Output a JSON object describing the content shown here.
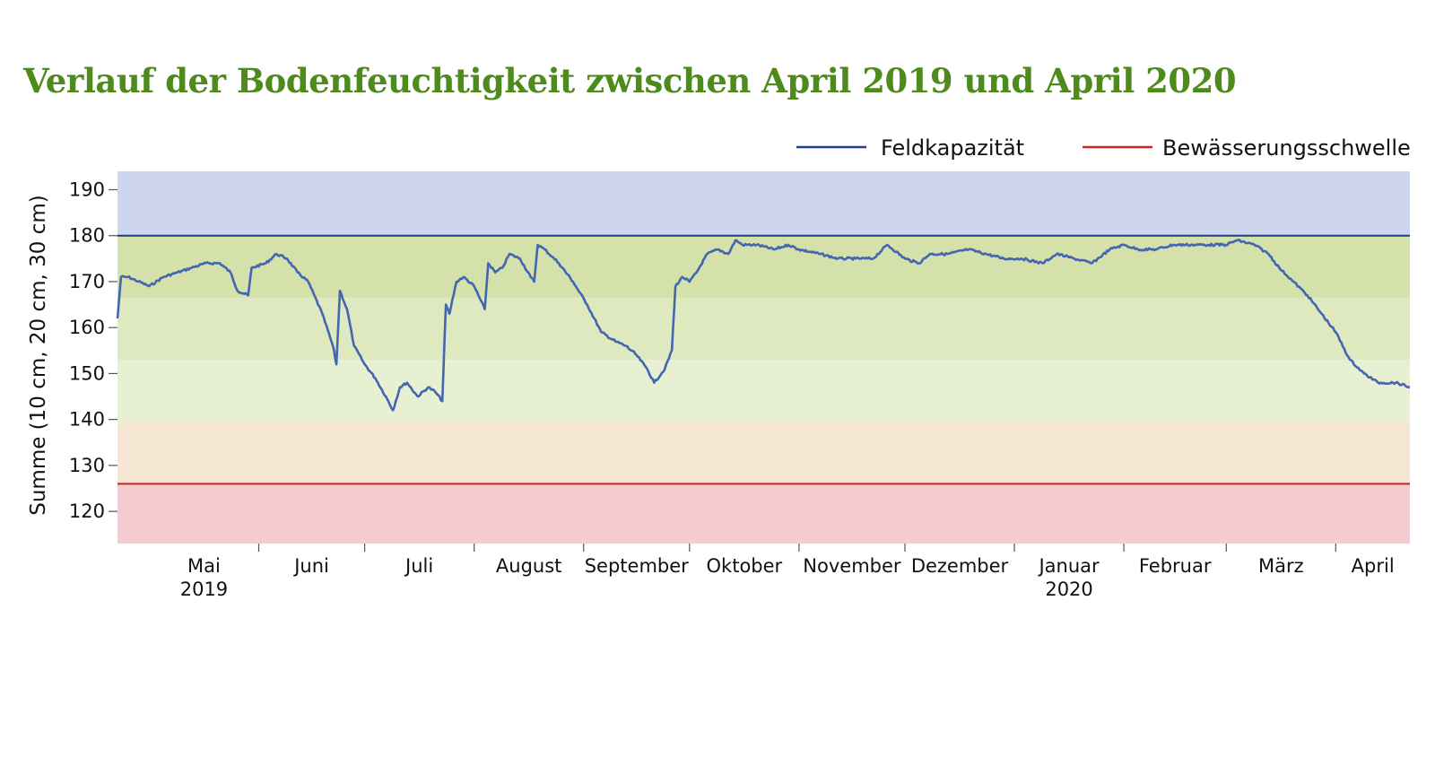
{
  "title": "Verlauf der Bodenfeuchtigkeit zwischen April 2019 und April 2020",
  "chart_data": {
    "type": "line",
    "title": "Verlauf der Bodenfeuchtigkeit zwischen April 2019 und April 2020",
    "xlabel": "",
    "ylabel": "Summe (10 cm, 20 cm, 30 cm)",
    "ylim": [
      113,
      194
    ],
    "yticks": [
      120,
      130,
      140,
      150,
      160,
      170,
      180,
      190
    ],
    "xlim": [
      "2019-04-22",
      "2020-04-22"
    ],
    "legend_position": "top-right",
    "legend": [
      {
        "label": "Feldkapazität",
        "color": "#1f3d8a"
      },
      {
        "label": "Bewässerungsschwelle",
        "color": "#d21f26"
      }
    ],
    "reference_lines": [
      {
        "name": "Feldkapazität",
        "y": 180,
        "color": "#1f3d8a"
      },
      {
        "name": "Bewässerungsschwelle",
        "y": 126,
        "color": "#d21f26"
      }
    ],
    "bands": [
      {
        "from": 180,
        "to": 194,
        "color": "#cdd6ee"
      },
      {
        "from": 166.5,
        "to": 180,
        "color": "#d4e1ab"
      },
      {
        "from": 153,
        "to": 166.5,
        "color": "#dfe9bf"
      },
      {
        "from": 139.5,
        "to": 153,
        "color": "#e7f0d2"
      },
      {
        "from": 126,
        "to": 139.5,
        "color": "#f6e6d4"
      },
      {
        "from": 113,
        "to": 126,
        "color": "#f4cccf"
      }
    ],
    "months": [
      {
        "label": "Mai",
        "sub": "2019",
        "start": "2019-05-01"
      },
      {
        "label": "Juni",
        "sub": "",
        "start": "2019-06-01"
      },
      {
        "label": "Juli",
        "sub": "",
        "start": "2019-07-01"
      },
      {
        "label": "August",
        "sub": "",
        "start": "2019-08-01"
      },
      {
        "label": "September",
        "sub": "",
        "start": "2019-09-01"
      },
      {
        "label": "Oktober",
        "sub": "",
        "start": "2019-10-01"
      },
      {
        "label": "November",
        "sub": "",
        "start": "2019-11-01"
      },
      {
        "label": "Dezember",
        "sub": "",
        "start": "2019-12-01"
      },
      {
        "label": "Januar",
        "sub": "2020",
        "start": "2020-01-01"
      },
      {
        "label": "Februar",
        "sub": "",
        "start": "2020-02-01"
      },
      {
        "label": "März",
        "sub": "",
        "start": "2020-03-01"
      },
      {
        "label": "April",
        "sub": "",
        "start": "2020-04-01"
      }
    ],
    "series": [
      {
        "name": "",
        "color": "#4466b0",
        "points": [
          [
            "2019-04-22",
            162
          ],
          [
            "2019-04-23",
            171
          ],
          [
            "2019-04-25",
            171
          ],
          [
            "2019-04-28",
            170
          ],
          [
            "2019-05-01",
            169
          ],
          [
            "2019-05-05",
            171
          ],
          [
            "2019-05-09",
            172
          ],
          [
            "2019-05-13",
            173
          ],
          [
            "2019-05-17",
            174
          ],
          [
            "2019-05-21",
            174
          ],
          [
            "2019-05-24",
            172
          ],
          [
            "2019-05-26",
            168
          ],
          [
            "2019-05-29",
            167
          ],
          [
            "2019-05-30",
            173
          ],
          [
            "2019-06-03",
            174
          ],
          [
            "2019-06-06",
            176
          ],
          [
            "2019-06-09",
            175
          ],
          [
            "2019-06-12",
            172
          ],
          [
            "2019-06-15",
            170
          ],
          [
            "2019-06-19",
            163
          ],
          [
            "2019-06-22",
            156
          ],
          [
            "2019-06-23",
            152
          ],
          [
            "2019-06-24",
            168
          ],
          [
            "2019-06-26",
            164
          ],
          [
            "2019-06-28",
            156
          ],
          [
            "2019-07-01",
            152
          ],
          [
            "2019-07-04",
            149
          ],
          [
            "2019-07-07",
            145
          ],
          [
            "2019-07-09",
            142
          ],
          [
            "2019-07-11",
            147
          ],
          [
            "2019-07-13",
            148
          ],
          [
            "2019-07-16",
            145
          ],
          [
            "2019-07-19",
            147
          ],
          [
            "2019-07-21",
            146
          ],
          [
            "2019-07-23",
            144
          ],
          [
            "2019-07-24",
            165
          ],
          [
            "2019-07-25",
            163
          ],
          [
            "2019-07-27",
            170
          ],
          [
            "2019-07-29",
            171
          ],
          [
            "2019-08-01",
            169
          ],
          [
            "2019-08-04",
            164
          ],
          [
            "2019-08-05",
            174
          ],
          [
            "2019-08-07",
            172
          ],
          [
            "2019-08-09",
            173
          ],
          [
            "2019-08-11",
            176
          ],
          [
            "2019-08-14",
            175
          ],
          [
            "2019-08-17",
            171
          ],
          [
            "2019-08-18",
            170
          ],
          [
            "2019-08-19",
            178
          ],
          [
            "2019-08-21",
            177
          ],
          [
            "2019-08-25",
            174
          ],
          [
            "2019-08-29",
            170
          ],
          [
            "2019-09-02",
            165
          ],
          [
            "2019-09-06",
            159
          ],
          [
            "2019-09-10",
            157
          ],
          [
            "2019-09-13",
            156
          ],
          [
            "2019-09-16",
            154
          ],
          [
            "2019-09-19",
            151
          ],
          [
            "2019-09-21",
            148
          ],
          [
            "2019-09-24",
            151
          ],
          [
            "2019-09-26",
            155
          ],
          [
            "2019-09-27",
            169
          ],
          [
            "2019-09-29",
            171
          ],
          [
            "2019-10-01",
            170
          ],
          [
            "2019-10-03",
            172
          ],
          [
            "2019-10-06",
            176
          ],
          [
            "2019-10-09",
            177
          ],
          [
            "2019-10-12",
            176
          ],
          [
            "2019-10-14",
            179
          ],
          [
            "2019-10-16",
            178
          ],
          [
            "2019-10-20",
            178
          ],
          [
            "2019-10-25",
            177
          ],
          [
            "2019-10-29",
            178
          ],
          [
            "2019-11-01",
            177
          ],
          [
            "2019-11-07",
            176
          ],
          [
            "2019-11-12",
            175
          ],
          [
            "2019-11-17",
            175
          ],
          [
            "2019-11-22",
            175
          ],
          [
            "2019-11-26",
            178
          ],
          [
            "2019-12-01",
            175
          ],
          [
            "2019-12-05",
            174
          ],
          [
            "2019-12-08",
            176
          ],
          [
            "2019-12-13",
            176
          ],
          [
            "2019-12-19",
            177
          ],
          [
            "2019-12-24",
            176
          ],
          [
            "2019-12-29",
            175
          ],
          [
            "2020-01-03",
            175
          ],
          [
            "2020-01-09",
            174
          ],
          [
            "2020-01-13",
            176
          ],
          [
            "2020-01-18",
            175
          ],
          [
            "2020-01-23",
            174
          ],
          [
            "2020-01-28",
            177
          ],
          [
            "2020-02-01",
            178
          ],
          [
            "2020-02-05",
            177
          ],
          [
            "2020-02-10",
            177
          ],
          [
            "2020-02-15",
            178
          ],
          [
            "2020-02-20",
            178
          ],
          [
            "2020-02-25",
            178
          ],
          [
            "2020-03-01",
            178
          ],
          [
            "2020-03-04",
            179
          ],
          [
            "2020-03-09",
            178
          ],
          [
            "2020-03-13",
            176
          ],
          [
            "2020-03-16",
            173
          ],
          [
            "2020-03-20",
            170
          ],
          [
            "2020-03-24",
            167
          ],
          [
            "2020-03-28",
            163
          ],
          [
            "2020-04-01",
            159
          ],
          [
            "2020-04-05",
            153
          ],
          [
            "2020-04-09",
            150
          ],
          [
            "2020-04-13",
            148
          ],
          [
            "2020-04-18",
            148
          ],
          [
            "2020-04-22",
            147
          ]
        ]
      }
    ]
  }
}
